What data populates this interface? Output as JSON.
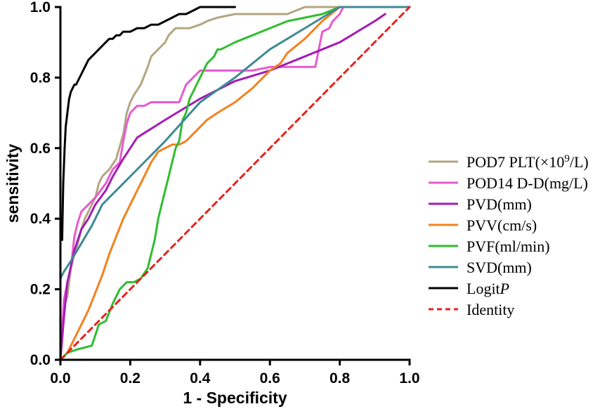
{
  "chart_data": {
    "type": "line",
    "title": "",
    "xlabel": "1 - Specificity",
    "ylabel": "sensitivity",
    "xlim": [
      0,
      1
    ],
    "ylim": [
      0,
      1
    ],
    "xticks": [
      "0.0",
      "0.2",
      "0.4",
      "0.6",
      "0.8",
      "1.0"
    ],
    "yticks": [
      "0.0",
      "0.2",
      "0.4",
      "0.6",
      "0.8",
      "1.0"
    ],
    "grid": false,
    "legend_position": "right",
    "series": [
      {
        "name": "POD7 PLT(×10⁹/L)",
        "legend": {
          "pre": "POD7 PLT(×10",
          "sup": "9",
          "post": "/L)",
          "italic": ""
        },
        "color": "#b3a681",
        "dash": "",
        "x": [
          0,
          0.01,
          0.02,
          0.03,
          0.04,
          0.05,
          0.06,
          0.07,
          0.08,
          0.09,
          0.1,
          0.11,
          0.12,
          0.13,
          0.14,
          0.16,
          0.18,
          0.19,
          0.2,
          0.21,
          0.23,
          0.25,
          0.26,
          0.28,
          0.3,
          0.31,
          0.33,
          0.35,
          0.37,
          0.4,
          0.42,
          0.45,
          0.5,
          0.55,
          0.6,
          0.65,
          0.7,
          0.73,
          0.75,
          0.8,
          0.81
        ],
        "y": [
          0,
          0.15,
          0.18,
          0.26,
          0.3,
          0.33,
          0.37,
          0.4,
          0.42,
          0.44,
          0.46,
          0.5,
          0.52,
          0.53,
          0.54,
          0.57,
          0.64,
          0.7,
          0.73,
          0.75,
          0.78,
          0.83,
          0.86,
          0.88,
          0.9,
          0.92,
          0.94,
          0.94,
          0.94,
          0.95,
          0.96,
          0.97,
          0.98,
          0.98,
          0.98,
          0.98,
          1.0,
          1.0,
          1.0,
          1.0,
          1.0
        ]
      },
      {
        "name": "POD14 D-D(mg/L)",
        "legend": {
          "pre": "POD14 D-D(mg/L)",
          "sup": "",
          "post": "",
          "italic": ""
        },
        "color": "#e85ad0",
        "dash": "",
        "x": [
          0,
          0.01,
          0.02,
          0.03,
          0.04,
          0.05,
          0.06,
          0.08,
          0.1,
          0.13,
          0.15,
          0.17,
          0.18,
          0.19,
          0.2,
          0.22,
          0.24,
          0.26,
          0.28,
          0.32,
          0.34,
          0.36,
          0.4,
          0.45,
          0.5,
          0.55,
          0.6,
          0.65,
          0.7,
          0.73,
          0.74,
          0.75,
          0.77,
          0.78,
          0.79,
          0.8,
          0.81
        ],
        "y": [
          0,
          0.17,
          0.22,
          0.26,
          0.35,
          0.39,
          0.42,
          0.44,
          0.46,
          0.5,
          0.54,
          0.56,
          0.62,
          0.67,
          0.7,
          0.72,
          0.72,
          0.73,
          0.73,
          0.73,
          0.73,
          0.78,
          0.82,
          0.82,
          0.82,
          0.82,
          0.83,
          0.83,
          0.83,
          0.83,
          0.88,
          0.93,
          0.94,
          0.96,
          0.97,
          0.98,
          1.0
        ]
      },
      {
        "name": "PVD(mm)",
        "legend": {
          "pre": "PVD(mm)",
          "sup": "",
          "post": "",
          "italic": ""
        },
        "color": "#a31cb3",
        "dash": "",
        "x": [
          0,
          0.01,
          0.02,
          0.04,
          0.06,
          0.08,
          0.1,
          0.13,
          0.15,
          0.18,
          0.22,
          0.3,
          0.4,
          0.5,
          0.6,
          0.7,
          0.8,
          0.9,
          0.93
        ],
        "y": [
          0,
          0.12,
          0.22,
          0.31,
          0.37,
          0.4,
          0.44,
          0.48,
          0.52,
          0.57,
          0.63,
          0.68,
          0.74,
          0.79,
          0.82,
          0.86,
          0.9,
          0.96,
          0.98
        ]
      },
      {
        "name": "PVV(cm/s)",
        "legend": {
          "pre": "PVV(cm/s)",
          "sup": "",
          "post": "",
          "italic": ""
        },
        "color": "#f2821e",
        "dash": "",
        "x": [
          0,
          0.02,
          0.04,
          0.06,
          0.08,
          0.1,
          0.12,
          0.14,
          0.16,
          0.18,
          0.2,
          0.22,
          0.24,
          0.26,
          0.28,
          0.3,
          0.32,
          0.34,
          0.36,
          0.38,
          0.4,
          0.42,
          0.45,
          0.5,
          0.55,
          0.58,
          0.6,
          0.63,
          0.65,
          0.7,
          0.75,
          0.8
        ],
        "y": [
          0,
          0.02,
          0.06,
          0.1,
          0.14,
          0.19,
          0.24,
          0.3,
          0.35,
          0.4,
          0.44,
          0.48,
          0.52,
          0.56,
          0.59,
          0.6,
          0.61,
          0.61,
          0.62,
          0.64,
          0.66,
          0.68,
          0.7,
          0.73,
          0.77,
          0.8,
          0.82,
          0.84,
          0.87,
          0.91,
          0.96,
          1.0
        ]
      },
      {
        "name": "PVF(ml/min)",
        "legend": {
          "pre": "PVF(ml/min)",
          "sup": "",
          "post": "",
          "italic": ""
        },
        "color": "#2fbe2f",
        "dash": "",
        "x": [
          0,
          0.02,
          0.05,
          0.09,
          0.11,
          0.13,
          0.15,
          0.17,
          0.19,
          0.21,
          0.23,
          0.25,
          0.26,
          0.27,
          0.28,
          0.29,
          0.3,
          0.31,
          0.32,
          0.33,
          0.34,
          0.35,
          0.36,
          0.37,
          0.38,
          0.4,
          0.42,
          0.44,
          0.45,
          0.46,
          0.48,
          0.5,
          0.55,
          0.6,
          0.65,
          0.7,
          0.75,
          0.8,
          0.85,
          0.9,
          1.0
        ],
        "y": [
          0,
          0.02,
          0.03,
          0.04,
          0.1,
          0.11,
          0.16,
          0.2,
          0.22,
          0.22,
          0.23,
          0.26,
          0.3,
          0.34,
          0.4,
          0.44,
          0.48,
          0.52,
          0.56,
          0.6,
          0.62,
          0.68,
          0.7,
          0.74,
          0.76,
          0.8,
          0.84,
          0.86,
          0.88,
          0.88,
          0.89,
          0.9,
          0.92,
          0.94,
          0.96,
          0.97,
          0.98,
          1.0,
          1.0,
          1.0,
          1.0
        ]
      },
      {
        "name": "SVD(mm)",
        "legend": {
          "pre": "SVD(mm)",
          "sup": "",
          "post": "",
          "italic": ""
        },
        "color": "#3f8a95",
        "dash": "",
        "x": [
          0,
          0.01,
          0.03,
          0.06,
          0.09,
          0.12,
          0.2,
          0.3,
          0.4,
          0.5,
          0.6,
          0.7,
          0.8,
          0.9,
          1.0
        ],
        "y": [
          0.23,
          0.25,
          0.28,
          0.33,
          0.38,
          0.44,
          0.52,
          0.62,
          0.73,
          0.8,
          0.88,
          0.94,
          1.0,
          1.0,
          1.0
        ]
      },
      {
        "name": "LogitP",
        "legend": {
          "pre": "Logit",
          "sup": "",
          "post": "",
          "italic": "P"
        },
        "color": "#000000",
        "dash": "",
        "x": [
          0.005,
          0.006,
          0.008,
          0.01,
          0.012,
          0.015,
          0.02,
          0.025,
          0.03,
          0.035,
          0.04,
          0.045,
          0.05,
          0.06,
          0.07,
          0.08,
          0.09,
          0.1,
          0.11,
          0.12,
          0.13,
          0.14,
          0.15,
          0.16,
          0.17,
          0.18,
          0.19,
          0.2,
          0.22,
          0.24,
          0.26,
          0.28,
          0.3,
          0.32,
          0.34,
          0.36,
          0.38,
          0.4,
          0.42,
          0.44,
          0.46,
          0.48,
          0.5
        ],
        "y": [
          0.34,
          0.4,
          0.5,
          0.55,
          0.6,
          0.66,
          0.7,
          0.74,
          0.76,
          0.77,
          0.78,
          0.78,
          0.79,
          0.81,
          0.83,
          0.85,
          0.86,
          0.87,
          0.88,
          0.89,
          0.9,
          0.91,
          0.91,
          0.92,
          0.92,
          0.93,
          0.93,
          0.93,
          0.94,
          0.94,
          0.95,
          0.95,
          0.96,
          0.97,
          0.98,
          0.98,
          0.99,
          1.0,
          1.0,
          1.0,
          1.0,
          1.0,
          1.0
        ]
      },
      {
        "name": "Identity",
        "legend": {
          "pre": "Identity",
          "sup": "",
          "post": "",
          "italic": ""
        },
        "color": "#e8221e",
        "dash": "8,6",
        "x": [
          0,
          1
        ],
        "y": [
          0,
          1
        ]
      }
    ]
  }
}
